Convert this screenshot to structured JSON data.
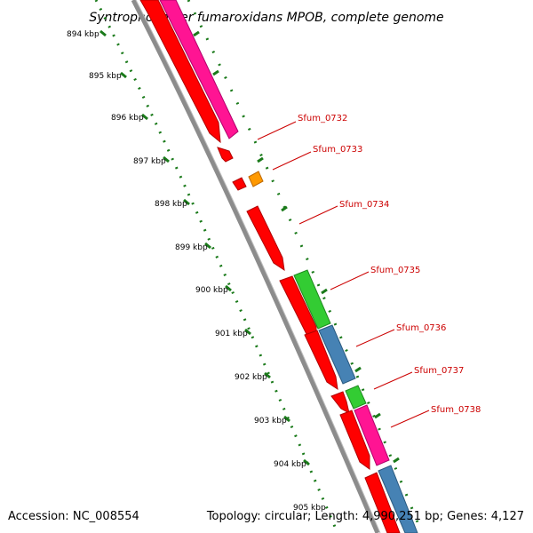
{
  "title": "Syntrophobacter fumaroxidans MPOB, complete genome",
  "footer": {
    "accession_label": "Accession:",
    "accession": "NC_008554",
    "topology_label": "Topology:",
    "topology": "circular",
    "length_label": "Length:",
    "length": "4,990,251 bp",
    "genes_label": "Genes:",
    "genes": "4,127"
  },
  "ticks": [
    "894 kbp",
    "895 kbp",
    "896 kbp",
    "897 kbp",
    "898 kbp",
    "899 kbp",
    "900 kbp",
    "901 kbp",
    "902 kbp",
    "903 kbp",
    "904 kbp",
    "905 kbp"
  ],
  "genes": [
    {
      "label": "Sfum_0732"
    },
    {
      "label": "Sfum_0733"
    },
    {
      "label": "Sfum_0734"
    },
    {
      "label": "Sfum_0735"
    },
    {
      "label": "Sfum_0736"
    },
    {
      "label": "Sfum_0737"
    },
    {
      "label": "Sfum_0738"
    }
  ],
  "colors": {
    "backbone": "#8c8c8c",
    "forward_gene": "#ff0000",
    "pink_feature": "#ff1493",
    "green_feature": "#33cc33",
    "blue_feature": "#4682b4",
    "orange_feature": "#ff9900",
    "tick": "#1a7a1a",
    "label_line": "#cc0000"
  }
}
